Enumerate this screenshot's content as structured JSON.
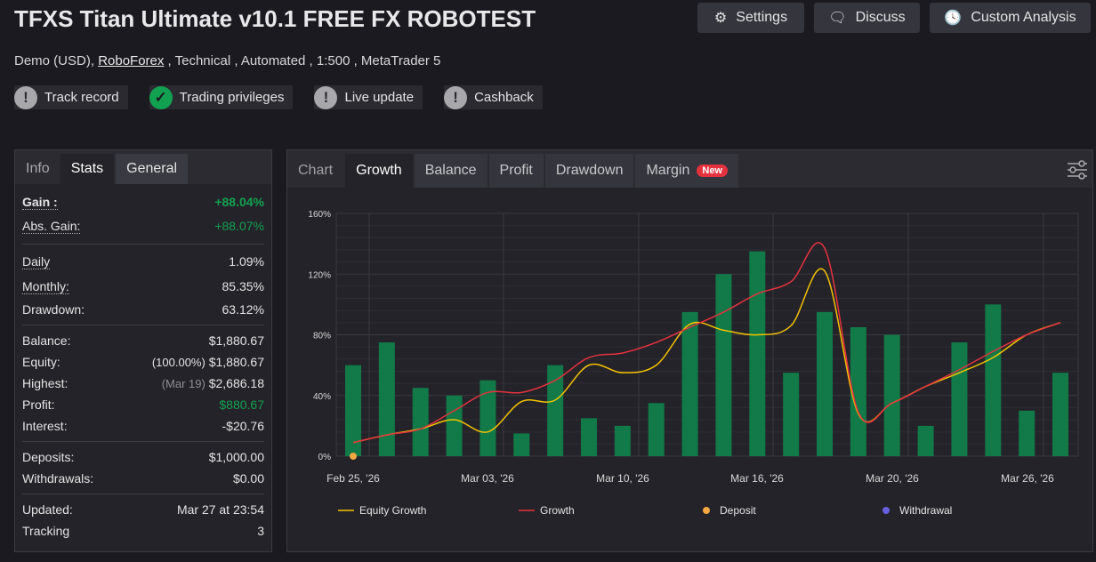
{
  "header": {
    "title": "TFXS Titan Ultimate v10.1 FREE FX ROBOTEST",
    "sub_prefix": "Demo (USD), ",
    "broker": "RoboForex",
    "sub_suffix": " , Technical , Automated , 1:500 , MetaTrader 5",
    "buttons": {
      "settings": "Settings",
      "discuss": "Discuss",
      "custom": "Custom Analysis"
    },
    "badges": [
      {
        "label": "Track record",
        "ok": false
      },
      {
        "label": "Trading privileges",
        "ok": true
      },
      {
        "label": "Live update",
        "ok": false
      },
      {
        "label": "Cashback",
        "ok": false
      }
    ]
  },
  "stats": {
    "tabs": [
      "Info",
      "Stats",
      "General"
    ],
    "gain": {
      "label": "Gain :",
      "value": "+88.04%"
    },
    "abs_gain": {
      "label": "Abs. Gain:",
      "value": "+88.07%"
    },
    "daily": {
      "label": "Daily",
      "value": "1.09%"
    },
    "monthly": {
      "label": "Monthly:",
      "value": "85.35%"
    },
    "drawdown": {
      "label": "Drawdown:",
      "value": "63.12%"
    },
    "balance": {
      "label": "Balance:",
      "value": "$1,880.67"
    },
    "equity": {
      "label": "Equity:",
      "note": "(100.00%)",
      "value": "$1,880.67"
    },
    "highest": {
      "label": "Highest:",
      "note": "(Mar 19)",
      "value": "$2,686.18"
    },
    "profit": {
      "label": "Profit:",
      "value": "$880.67"
    },
    "interest": {
      "label": "Interest:",
      "value": "-$20.76"
    },
    "deposits": {
      "label": "Deposits:",
      "value": "$1,000.00"
    },
    "withdrawals": {
      "label": "Withdrawals:",
      "value": "$0.00"
    },
    "updated": {
      "label": "Updated:",
      "value": "Mar 27 at 23:54"
    },
    "tracking": {
      "label": "Tracking",
      "value": "3"
    }
  },
  "chart_tabs": {
    "chart": "Chart",
    "growth": "Growth",
    "balance": "Balance",
    "profit": "Profit",
    "drawdown": "Drawdown",
    "margin": "Margin",
    "new_badge": "New"
  },
  "chart_data": {
    "type": "bar+line",
    "ylim": [
      0,
      160
    ],
    "yticks": [
      "0%",
      "40%",
      "80%",
      "120%",
      "160%"
    ],
    "xticks": [
      "Feb 25, '26",
      "Mar 03, '26",
      "Mar 10, '26",
      "Mar 16, '26",
      "Mar 20, '26",
      "Mar 26, '26"
    ],
    "bars": [
      60,
      75,
      45,
      40,
      50,
      15,
      60,
      25,
      20,
      35,
      95,
      120,
      135,
      55,
      95,
      85,
      80,
      20,
      75,
      100,
      30,
      55
    ],
    "series": [
      {
        "name": "Equity Growth",
        "color": "#f5c400",
        "values": [
          9,
          14,
          18,
          24,
          16,
          36,
          37,
          60,
          55,
          60,
          87,
          83,
          80,
          86,
          122,
          28,
          35,
          46,
          55,
          65,
          80,
          88
        ]
      },
      {
        "name": "Growth",
        "color": "#e5323f",
        "values": [
          9,
          14,
          18,
          30,
          42,
          42,
          50,
          65,
          68,
          75,
          85,
          95,
          107,
          115,
          137,
          29,
          35,
          46,
          57,
          69,
          80,
          88
        ]
      }
    ],
    "deposit": {
      "name": "Deposit",
      "color": "#f5a742",
      "index": 0,
      "value": 0
    },
    "withdrawal": {
      "name": "Withdrawal",
      "color": "#6a5fe0"
    },
    "bar_color": "#117a48"
  }
}
